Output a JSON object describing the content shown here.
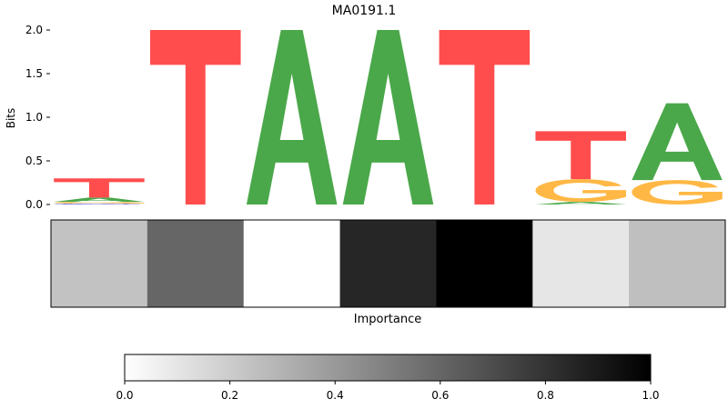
{
  "chart_data": [
    {
      "type": "sequence-logo",
      "title": "MA0191.1",
      "ylabel": "Bits",
      "ylim": [
        0,
        2.0
      ],
      "yticks": [
        "0.0",
        "0.5",
        "1.0",
        "1.5",
        "2.0"
      ],
      "positions": [
        {
          "stack": [
            {
              "letter": "C",
              "bits": 0.01
            },
            {
              "letter": "G",
              "bits": 0.02
            },
            {
              "letter": "A",
              "bits": 0.05
            },
            {
              "letter": "T",
              "bits": 0.22
            }
          ]
        },
        {
          "stack": [
            {
              "letter": "T",
              "bits": 2.0
            }
          ]
        },
        {
          "stack": [
            {
              "letter": "A",
              "bits": 2.0
            }
          ]
        },
        {
          "stack": [
            {
              "letter": "A",
              "bits": 2.0
            }
          ]
        },
        {
          "stack": [
            {
              "letter": "T",
              "bits": 2.0
            }
          ]
        },
        {
          "stack": [
            {
              "letter": "A",
              "bits": 0.03
            },
            {
              "letter": "G",
              "bits": 0.26
            },
            {
              "letter": "T",
              "bits": 0.55
            }
          ]
        },
        {
          "stack": [
            {
              "letter": "G",
              "bits": 0.28
            },
            {
              "letter": "A",
              "bits": 0.88
            }
          ]
        }
      ],
      "letter_colors": {
        "A": "#4aa84a",
        "C": "#3b3bd9",
        "G": "#ffb845",
        "T": "#ff4d4d"
      }
    },
    {
      "type": "heatmap",
      "xlabel": "Importance",
      "values": [
        0.24,
        0.6,
        0.0,
        0.85,
        1.0,
        0.1,
        0.25
      ],
      "colormap": "Greys"
    },
    {
      "type": "colorbar",
      "range": [
        0.0,
        1.0
      ],
      "ticks": [
        "0.0",
        "0.2",
        "0.4",
        "0.6",
        "0.8",
        "1.0"
      ],
      "colormap": "Greys"
    }
  ]
}
